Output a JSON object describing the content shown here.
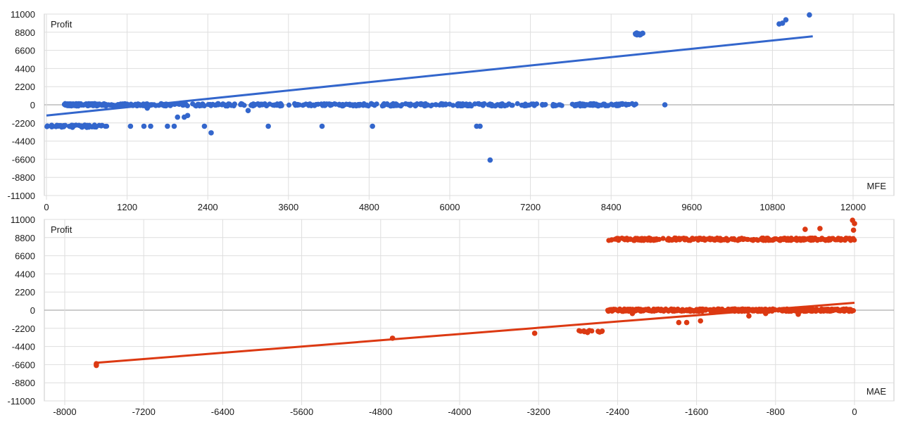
{
  "chart_data": [
    {
      "type": "scatter",
      "ylabel": "Profit",
      "xlabel": "MFE",
      "xlim": [
        0,
        12000
      ],
      "ylim": [
        -11000,
        11000
      ],
      "x_ticks": [
        "0",
        "1200",
        "2400",
        "3600",
        "4800",
        "6000",
        "7200",
        "8400",
        "9600",
        "10800",
        "12000"
      ],
      "y_ticks": [
        "11000",
        "8800",
        "6600",
        "4400",
        "2200",
        "0",
        "-2200",
        "-4400",
        "-6600",
        "-8800",
        "-11000"
      ],
      "grid": true,
      "color": "#3366cc",
      "trendline": [
        [
          0,
          -1300
        ],
        [
          11400,
          8300
        ]
      ],
      "clusters": [
        {
          "x_range": [
            0,
            900
          ],
          "y": -2600,
          "count": 60
        },
        {
          "x_range": [
            250,
            900
          ],
          "y": 0,
          "count": 90
        },
        {
          "x_range": [
            900,
            8800
          ],
          "y": 0,
          "count": 430
        },
        {
          "x_range": [
            8740,
            8880
          ],
          "y": 8600,
          "count": 12
        }
      ],
      "points": [
        [
          1250,
          -2600
        ],
        [
          1450,
          -2600
        ],
        [
          1550,
          -2600
        ],
        [
          1800,
          -2600
        ],
        [
          1900,
          -2600
        ],
        [
          1950,
          -1500
        ],
        [
          2050,
          -1500
        ],
        [
          2100,
          -1300
        ],
        [
          2350,
          -2600
        ],
        [
          2450,
          -3400
        ],
        [
          1500,
          -400
        ],
        [
          3000,
          -700
        ],
        [
          3300,
          -2600
        ],
        [
          4100,
          -2600
        ],
        [
          4850,
          -2600
        ],
        [
          6400,
          -2600
        ],
        [
          6450,
          -2600
        ],
        [
          6600,
          -6700
        ],
        [
          10900,
          9800
        ],
        [
          10950,
          9900
        ],
        [
          11000,
          10300
        ],
        [
          11350,
          10900
        ],
        [
          8550,
          100
        ],
        [
          9200,
          0
        ]
      ]
    },
    {
      "type": "scatter",
      "ylabel": "Profit",
      "xlabel": "MAE",
      "xlim": [
        -8200,
        400
      ],
      "ylim": [
        -11000,
        11000
      ],
      "x_ticks": [
        "-8000",
        "-7200",
        "-6400",
        "-5600",
        "-4800",
        "-4000",
        "-3200",
        "-2400",
        "-1600",
        "-800",
        "0"
      ],
      "y_ticks": [
        "11000",
        "8800",
        "6600",
        "4400",
        "2200",
        "0",
        "-2200",
        "-4400",
        "-6600",
        "-8800",
        "-11000"
      ],
      "grid": true,
      "color": "#dc3912",
      "trendline": [
        [
          -7700,
          -6400
        ],
        [
          0,
          900
        ]
      ],
      "clusters": [
        {
          "x_range": [
            -2500,
            0
          ],
          "y": 8600,
          "count": 260
        },
        {
          "x_range": [
            -2500,
            0
          ],
          "y": 0,
          "count": 420
        },
        {
          "x_range": [
            -2800,
            -2550
          ],
          "y": -2600,
          "count": 14
        }
      ],
      "points": [
        [
          -7680,
          -6500
        ],
        [
          -7680,
          -6700
        ],
        [
          -4680,
          -3400
        ],
        [
          -3240,
          -2800
        ],
        [
          -2250,
          -400
        ],
        [
          -1780,
          -1500
        ],
        [
          -1700,
          -1500
        ],
        [
          -1560,
          -1300
        ],
        [
          -1070,
          -700
        ],
        [
          -570,
          -500
        ],
        [
          -500,
          9800
        ],
        [
          -350,
          9900
        ],
        [
          -20,
          10900
        ],
        [
          0,
          10500
        ],
        [
          -10,
          9700
        ],
        [
          -1450,
          -200
        ],
        [
          -900,
          -400
        ]
      ]
    }
  ]
}
